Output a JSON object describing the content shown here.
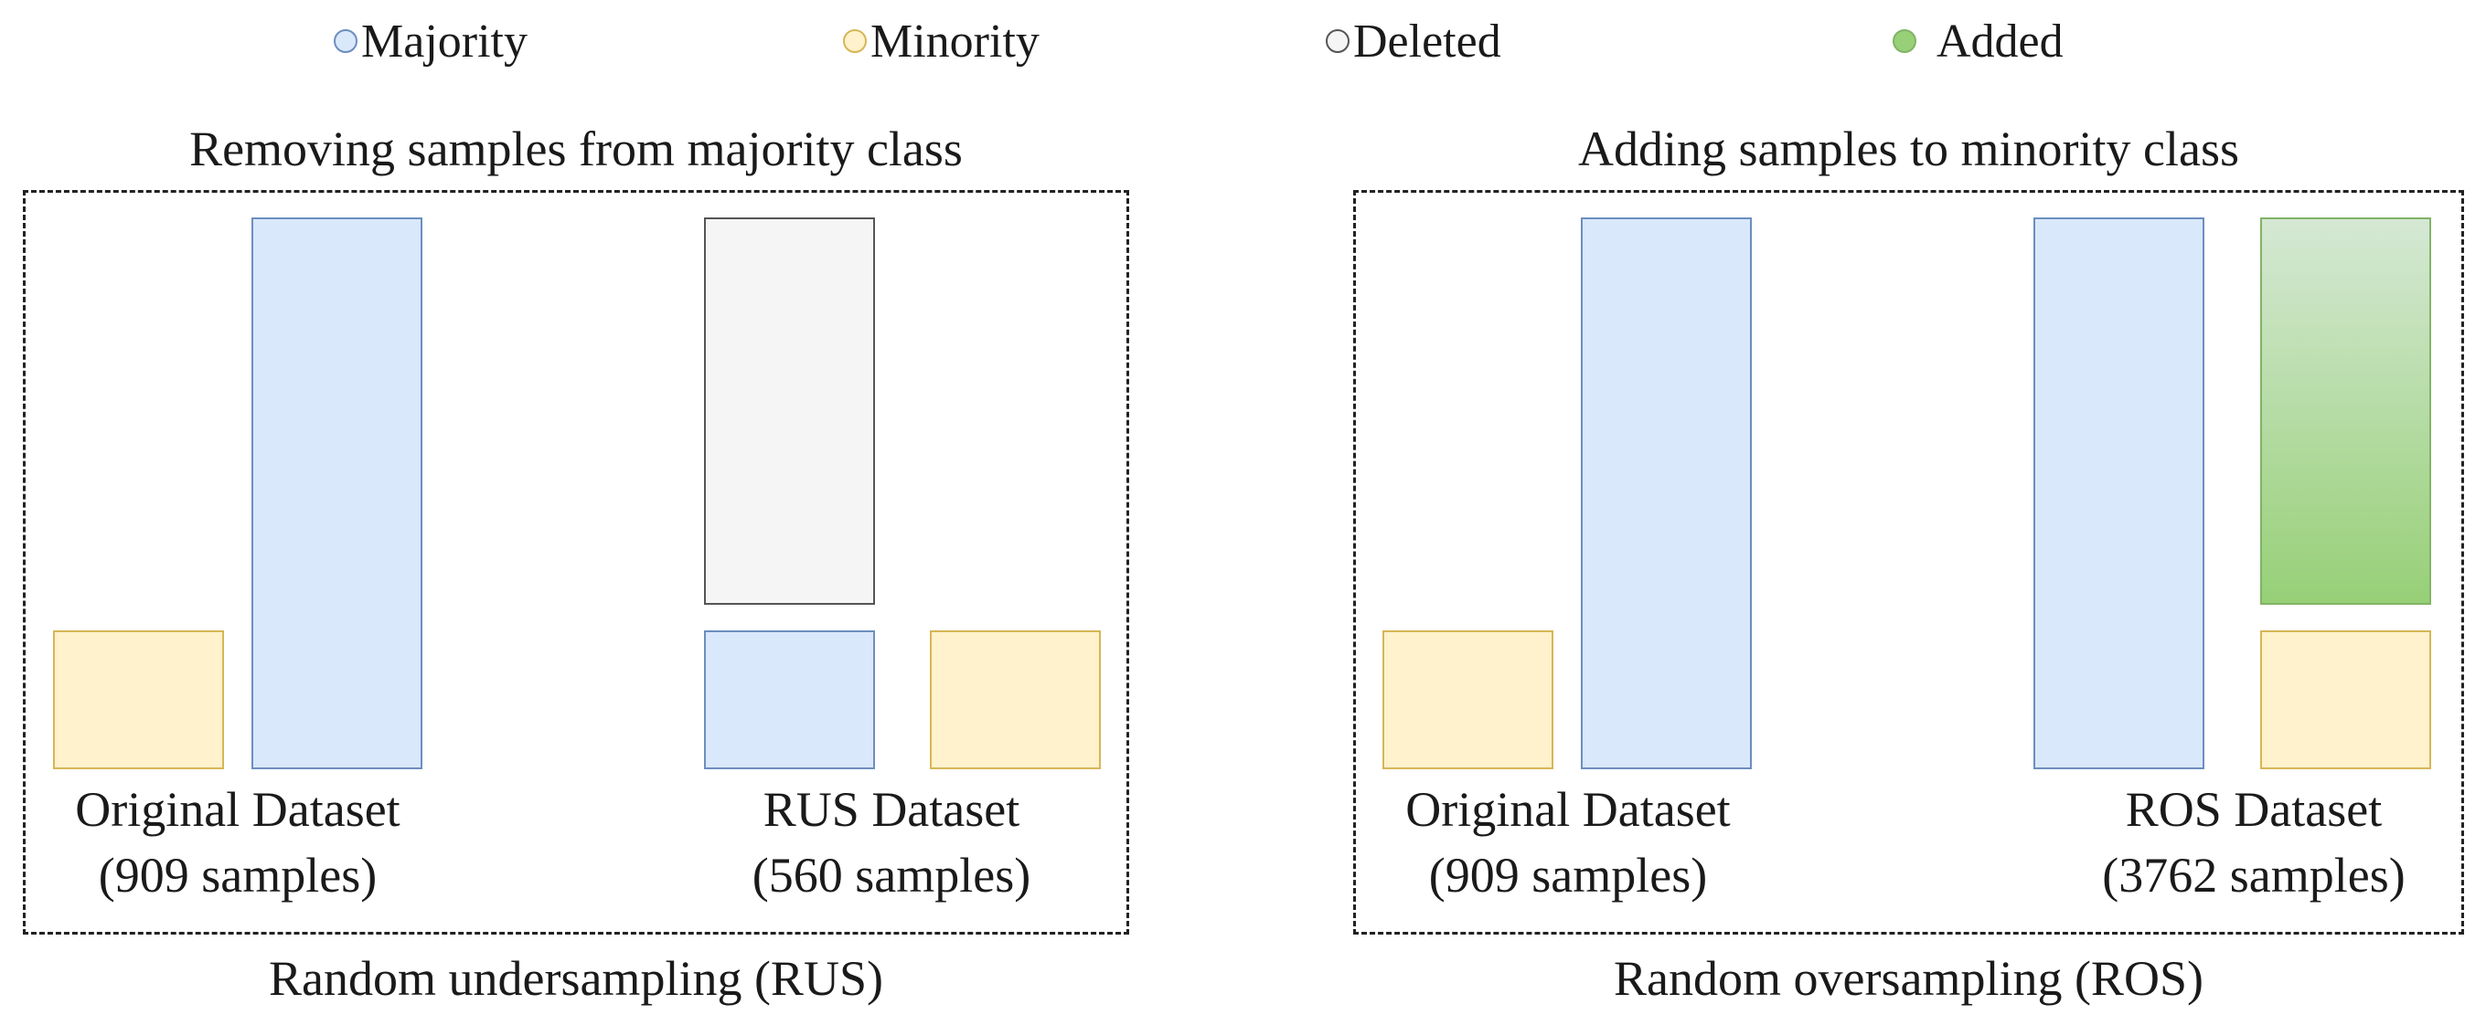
{
  "legend": {
    "items": [
      {
        "label": "Majority",
        "icon": "circle-icon",
        "fill": "#dae8fc",
        "stroke": "#6c8ebf"
      },
      {
        "label": "Minority",
        "icon": "circle-icon",
        "fill": "#fff2cc",
        "stroke": "#d6b656"
      },
      {
        "label": "Deleted",
        "icon": "circle-icon",
        "fill": "#f5f5f5",
        "stroke": "#555555"
      },
      {
        "label": "Added",
        "icon": "circle-icon",
        "fill": "#97d077",
        "stroke": "#82b366"
      }
    ]
  },
  "rus_panel": {
    "title": "Removing samples from majority class",
    "caption": "Random undersampling (RUS)",
    "original": {
      "name": "Original Dataset",
      "count": "(909 samples)"
    },
    "result": {
      "name": "RUS Dataset",
      "count": "(560 samples)"
    }
  },
  "ros_panel": {
    "title": "Adding samples to minority class",
    "caption": "Random oversampling (ROS)",
    "original": {
      "name": "Original Dataset",
      "count": "(909 samples)"
    },
    "result": {
      "name": "ROS Dataset",
      "count": "(3762 samples)"
    }
  }
}
